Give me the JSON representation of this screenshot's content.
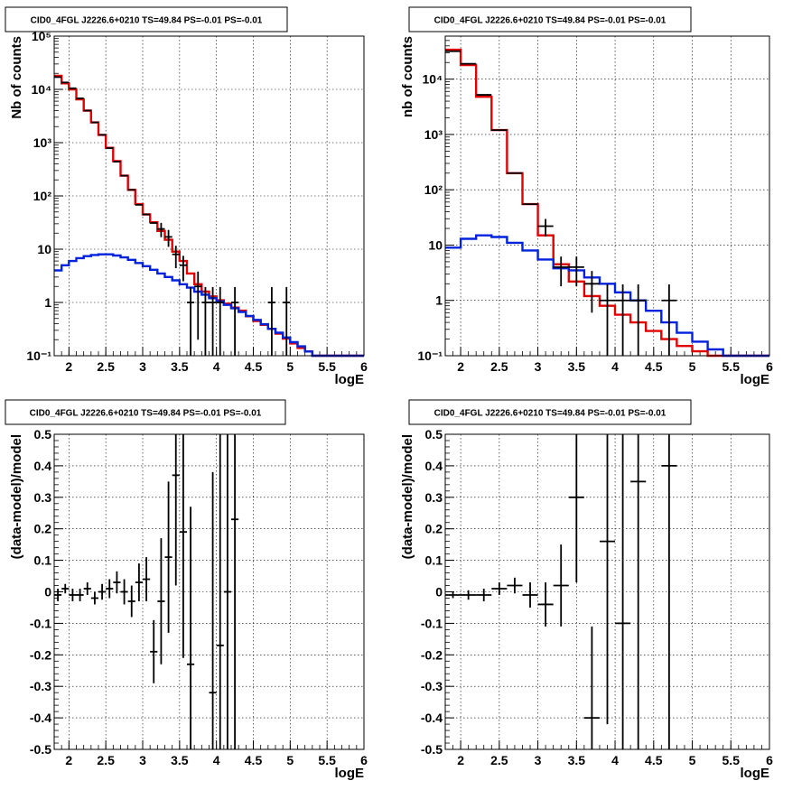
{
  "colors": {
    "model": "#e00000",
    "component": "#0022dd",
    "data": "#000000",
    "grid": "#000000"
  },
  "chart_data": [
    {
      "type": "line",
      "title": "CID0_4FGL J2226.6+0210 TS=49.84 PS=-0.01 PS=-0.01",
      "xlabel": "logE",
      "ylabel": "Nb of counts",
      "xlim": [
        1.8,
        6.0
      ],
      "ylim": [
        0.1,
        100000
      ],
      "yscale": "log",
      "grid": true,
      "xticks": [
        "2",
        "2.5",
        "3",
        "3.5",
        "4",
        "4.5",
        "5",
        "5.5",
        "6"
      ],
      "yticks": [
        "10⁻¹",
        "1",
        "10",
        "10²",
        "10³",
        "10⁴",
        "10⁵"
      ],
      "series": [
        {
          "kind": "hist",
          "color": "red",
          "edges": [
            1.8,
            1.9,
            2.0,
            2.1,
            2.2,
            2.3,
            2.4,
            2.5,
            2.6,
            2.7,
            2.8,
            2.9,
            3.0,
            3.1,
            3.2,
            3.3,
            3.4,
            3.5,
            3.6,
            3.7,
            3.8,
            3.9,
            4.0,
            4.1,
            4.2,
            4.3,
            4.4,
            4.5,
            4.6,
            4.7,
            4.8,
            4.9,
            5.0,
            5.1,
            5.2,
            5.3,
            5.4,
            5.5,
            5.6,
            5.7,
            5.8,
            5.9,
            6.0
          ],
          "values": [
            18000,
            13000,
            10000,
            6500,
            4000,
            2400,
            1400,
            800,
            450,
            240,
            130,
            70,
            45,
            32,
            22,
            15,
            9,
            6,
            3.5,
            2.2,
            1.6,
            1.3,
            1.1,
            0.95,
            0.8,
            0.7,
            0.55,
            0.45,
            0.38,
            0.32,
            0.26,
            0.21,
            0.17,
            0.14,
            0.12,
            0.1,
            0.1,
            0.1,
            0.1,
            0.1,
            0.1,
            0.1
          ]
        },
        {
          "kind": "hist",
          "color": "blue",
          "edges": [
            1.8,
            1.9,
            2.0,
            2.1,
            2.2,
            2.3,
            2.4,
            2.5,
            2.6,
            2.7,
            2.8,
            2.9,
            3.0,
            3.1,
            3.2,
            3.3,
            3.4,
            3.5,
            3.6,
            3.7,
            3.8,
            3.9,
            4.0,
            4.1,
            4.2,
            4.3,
            4.4,
            4.5,
            4.6,
            4.7,
            4.8,
            4.9,
            5.0,
            5.1,
            5.2,
            5.3,
            5.4,
            5.5,
            5.6,
            5.7,
            5.8,
            5.9,
            6.0
          ],
          "values": [
            4,
            5,
            6,
            6.8,
            7.4,
            7.8,
            8,
            8,
            7.6,
            7,
            6.3,
            5.5,
            4.8,
            4.1,
            3.5,
            3.0,
            2.6,
            2.2,
            1.9,
            1.6,
            1.4,
            1.2,
            1.05,
            0.9,
            0.78,
            0.66,
            0.56,
            0.47,
            0.39,
            0.32,
            0.27,
            0.22,
            0.18,
            0.15,
            0.12,
            0.1,
            0.1,
            0.1,
            0.1,
            0.1,
            0.1,
            0.1
          ]
        },
        {
          "kind": "points",
          "color": "black",
          "points": [
            [
              1.85,
              17000,
              0.05,
              0
            ],
            [
              1.95,
              13500,
              0.05,
              0
            ],
            [
              2.05,
              10500,
              0.05,
              0
            ],
            [
              2.15,
              6800,
              0.05,
              0
            ],
            [
              2.25,
              4000,
              0.05,
              0
            ],
            [
              2.35,
              2400,
              0.05,
              0
            ],
            [
              2.45,
              1400,
              0.05,
              0
            ],
            [
              2.55,
              790,
              0.05,
              0
            ],
            [
              2.65,
              440,
              0.05,
              0
            ],
            [
              2.75,
              240,
              0.05,
              0
            ],
            [
              2.85,
              130,
              0.05,
              0
            ],
            [
              2.95,
              68,
              0.05,
              0
            ],
            [
              3.05,
              45,
              0.05,
              0
            ],
            [
              3.15,
              31,
              0.05,
              0
            ],
            [
              3.25,
              24,
              0.05,
              0.3
            ],
            [
              3.35,
              17,
              0.05,
              0.35
            ],
            [
              3.45,
              8,
              0.05,
              0.45
            ],
            [
              3.55,
              5,
              0.05,
              0.5
            ],
            [
              3.65,
              1,
              0.05,
              0.95
            ],
            [
              3.75,
              2,
              0.05,
              0.9
            ],
            [
              3.85,
              1,
              0.05,
              0.95
            ],
            [
              3.95,
              1,
              0.05,
              0.95
            ],
            [
              4.05,
              1,
              0.05,
              0.95
            ],
            [
              4.25,
              1,
              0.05,
              0.95
            ],
            [
              4.75,
              1,
              0.05,
              0.95
            ],
            [
              4.95,
              1,
              0.05,
              0.95
            ]
          ]
        }
      ]
    },
    {
      "type": "line",
      "title": "CID0_4FGL J2226.6+0210 TS=49.84 PS=-0.01 PS=-0.01",
      "xlabel": "logE",
      "ylabel": "nb of counts",
      "xlim": [
        1.8,
        6.0
      ],
      "ylim": [
        0.1,
        60000
      ],
      "yscale": "log",
      "grid": true,
      "xticks": [
        "2",
        "2.5",
        "3",
        "3.5",
        "4",
        "4.5",
        "5",
        "5.5",
        "6"
      ],
      "yticks": [
        "10⁻¹",
        "1",
        "10",
        "10²",
        "10³",
        "10⁴"
      ],
      "series": [
        {
          "kind": "hist",
          "color": "red",
          "edges": [
            1.8,
            2.0,
            2.2,
            2.4,
            2.6,
            2.8,
            3.0,
            3.2,
            3.4,
            3.6,
            3.8,
            4.0,
            4.2,
            4.4,
            4.6,
            4.8,
            5.0,
            5.2,
            5.4,
            5.6,
            5.8,
            6.0
          ],
          "values": [
            34000,
            18000,
            4800,
            1200,
            200,
            55,
            15,
            4.5,
            2.2,
            1.2,
            0.8,
            0.55,
            0.4,
            0.28,
            0.2,
            0.15,
            0.12,
            0.1,
            0.1,
            0.1,
            0.1
          ]
        },
        {
          "kind": "hist",
          "color": "blue",
          "edges": [
            1.8,
            2.0,
            2.2,
            2.4,
            2.6,
            2.8,
            3.0,
            3.2,
            3.4,
            3.6,
            3.8,
            4.0,
            4.2,
            4.4,
            4.6,
            4.8,
            5.0,
            5.2,
            5.4,
            5.6,
            5.8,
            6.0
          ],
          "values": [
            9,
            13,
            15,
            14,
            11,
            8,
            5.5,
            3.8,
            3.5,
            2.6,
            2.0,
            1.4,
            1.0,
            0.65,
            0.4,
            0.26,
            0.18,
            0.13,
            0.1,
            0.1,
            0.1
          ]
        },
        {
          "kind": "points",
          "color": "black",
          "points": [
            [
              1.9,
              32000,
              0.1,
              0
            ],
            [
              2.1,
              19000,
              0.1,
              0
            ],
            [
              2.3,
              5200,
              0.1,
              0
            ],
            [
              2.5,
              1200,
              0.1,
              0
            ],
            [
              2.7,
              200,
              0.1,
              0
            ],
            [
              2.9,
              55,
              0.1,
              0
            ],
            [
              3.1,
              22,
              0.1,
              0.35
            ],
            [
              3.3,
              4,
              0.1,
              0.55
            ],
            [
              3.5,
              4,
              0.1,
              0.55
            ],
            [
              3.7,
              2,
              0.1,
              0.7
            ],
            [
              3.9,
              1,
              0.1,
              0.95
            ],
            [
              4.1,
              1,
              0.1,
              0.95
            ],
            [
              4.3,
              1,
              0.1,
              0.95
            ],
            [
              4.7,
              1,
              0.1,
              0.95
            ]
          ]
        }
      ]
    },
    {
      "type": "scatter",
      "title": "CID0_4FGL J2226.6+0210 TS=49.84 PS=-0.01 PS=-0.01",
      "xlabel": "logE",
      "ylabel": "(data-model)/model",
      "xlim": [
        1.8,
        6.0
      ],
      "ylim": [
        -0.5,
        0.5
      ],
      "grid": true,
      "xticks": [
        "2",
        "2.5",
        "3",
        "3.5",
        "4",
        "4.5",
        "5",
        "5.5",
        "6"
      ],
      "yticks": [
        "-0.5",
        "-0.4",
        "-0.3",
        "-0.2",
        "-0.1",
        "0",
        "0.1",
        "0.2",
        "0.3",
        "0.4",
        "0.5"
      ],
      "series": [
        {
          "kind": "points",
          "color": "black",
          "points": [
            [
              1.85,
              -0.01,
              0.05,
              0.02
            ],
            [
              1.95,
              0.01,
              0.05,
              0.015
            ],
            [
              2.05,
              -0.01,
              0.05,
              0.02
            ],
            [
              2.15,
              -0.01,
              0.05,
              0.02
            ],
            [
              2.25,
              0.01,
              0.05,
              0.02
            ],
            [
              2.35,
              -0.02,
              0.05,
              0.02
            ],
            [
              2.45,
              0.0,
              0.05,
              0.025
            ],
            [
              2.55,
              0.01,
              0.05,
              0.03
            ],
            [
              2.65,
              0.03,
              0.05,
              0.035
            ],
            [
              2.75,
              0.0,
              0.05,
              0.04
            ],
            [
              2.85,
              -0.03,
              0.05,
              0.05
            ],
            [
              2.95,
              0.03,
              0.05,
              0.06
            ],
            [
              3.05,
              0.04,
              0.05,
              0.07
            ],
            [
              3.15,
              -0.19,
              0.05,
              0.1
            ],
            [
              3.25,
              -0.03,
              0.05,
              0.2
            ],
            [
              3.35,
              0.11,
              0.05,
              0.24
            ],
            [
              3.45,
              0.37,
              0.05,
              0.35
            ],
            [
              3.55,
              0.19,
              0.05,
              0.4
            ],
            [
              3.65,
              -0.23,
              0.05,
              0.5
            ],
            [
              3.95,
              -0.32,
              0.05,
              0.7
            ],
            [
              4.05,
              -0.17,
              0.05,
              0.8
            ],
            [
              4.15,
              0.0,
              0.05,
              0.9
            ],
            [
              4.25,
              0.23,
              0.05,
              1.0
            ]
          ]
        }
      ]
    },
    {
      "type": "scatter",
      "title": "CID0_4FGL J2226.6+0210 TS=49.84 PS=-0.01 PS=-0.01",
      "xlabel": "logE",
      "ylabel": "(data-model)/model",
      "xlim": [
        1.8,
        6.0
      ],
      "ylim": [
        -0.5,
        0.5
      ],
      "grid": true,
      "xticks": [
        "2",
        "2.5",
        "3",
        "3.5",
        "4",
        "4.5",
        "5",
        "5.5",
        "6"
      ],
      "yticks": [
        "-0.5",
        "-0.4",
        "-0.3",
        "-0.2",
        "-0.1",
        "0",
        "0.1",
        "0.2",
        "0.3",
        "0.4",
        "0.5"
      ],
      "series": [
        {
          "kind": "points",
          "color": "black",
          "points": [
            [
              1.9,
              -0.01,
              0.1,
              0.01
            ],
            [
              2.1,
              -0.01,
              0.1,
              0.015
            ],
            [
              2.3,
              -0.01,
              0.1,
              0.02
            ],
            [
              2.5,
              0.01,
              0.1,
              0.02
            ],
            [
              2.7,
              0.02,
              0.1,
              0.025
            ],
            [
              2.9,
              -0.01,
              0.1,
              0.04
            ],
            [
              3.1,
              -0.04,
              0.1,
              0.07
            ],
            [
              3.3,
              0.02,
              0.1,
              0.13
            ],
            [
              3.5,
              0.3,
              0.1,
              0.27
            ],
            [
              3.7,
              -0.4,
              0.1,
              0.29
            ],
            [
              3.9,
              0.16,
              0.1,
              0.58
            ],
            [
              4.1,
              -0.1,
              0.1,
              0.8
            ],
            [
              4.3,
              0.35,
              0.1,
              0.9
            ],
            [
              4.7,
              0.4,
              0.1,
              1.0
            ]
          ]
        }
      ]
    }
  ]
}
